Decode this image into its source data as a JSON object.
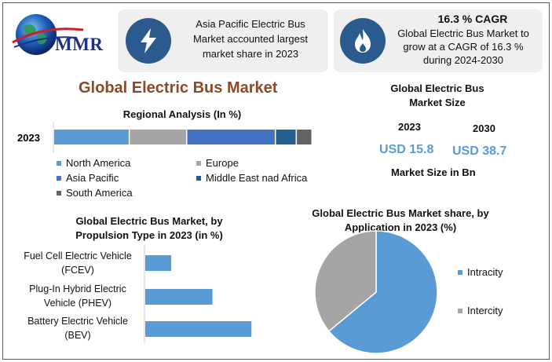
{
  "logo": {
    "text": "MMR"
  },
  "card1": {
    "text": "Asia Pacific Electric Bus Market accounted largest market share in 2023",
    "icon": "lightning-icon"
  },
  "card2": {
    "headline": "16.3 % CAGR",
    "text": "Global Electric Bus Market to grow at a CAGR of 16.3 % during 2024-2030",
    "icon": "flame-icon"
  },
  "main_title": "Global Electric Bus Market",
  "market_size": {
    "title": "Global Electric Bus Market Size",
    "years": [
      "2023",
      "2030"
    ],
    "values": [
      "USD 15.8",
      "USD 38.7"
    ],
    "unit_label": "Market Size in Bn"
  },
  "colors": {
    "north_america": "#5b9bd5",
    "europe": "#a5a5a5",
    "asia_pacific": "#4472c4",
    "mea": "#255e91",
    "south_america": "#636363",
    "propulsion_bar": "#5b9bd5",
    "intracity": "#5b9bd5",
    "intercity": "#a5a5a5"
  },
  "chart_data": [
    {
      "type": "bar",
      "orientation": "horizontal-stacked",
      "title": "Regional Analysis (In %)",
      "categories": [
        "2023"
      ],
      "series": [
        {
          "name": "North America",
          "values": [
            29
          ]
        },
        {
          "name": "Europe",
          "values": [
            22
          ]
        },
        {
          "name": "Asia Pacific",
          "values": [
            34
          ]
        },
        {
          "name": "Middle East nad Africa",
          "values": [
            8
          ]
        },
        {
          "name": "South America",
          "values": [
            6
          ]
        }
      ],
      "legend": "bottom"
    },
    {
      "type": "bar",
      "orientation": "horizontal",
      "title": "Global Electric Bus Market, by Propulsion Type in 2023 (in %)",
      "categories": [
        "Fuel Cell Electric Vehicle (FCEV)",
        "Plug-In Hybrid Electric Vehicle (PHEV)",
        "Battery Electric Vehicle (BEV)"
      ],
      "category_lines": [
        [
          "Fuel Cell Electric Vehicle",
          "(FCEV)"
        ],
        [
          "Plug-In Hybrid Electric",
          "Vehicle (PHEV)"
        ],
        [
          "Battery Electric Vehicle",
          "(BEV)"
        ]
      ],
      "values": [
        12,
        31,
        49
      ],
      "xlim": [
        0,
        100
      ]
    },
    {
      "type": "pie",
      "title": "Global Electric Bus Market share, by Application in 2023  (%)",
      "labels": [
        "Intracity",
        "Intercity"
      ],
      "values": [
        64,
        36
      ],
      "legend": "right"
    }
  ]
}
